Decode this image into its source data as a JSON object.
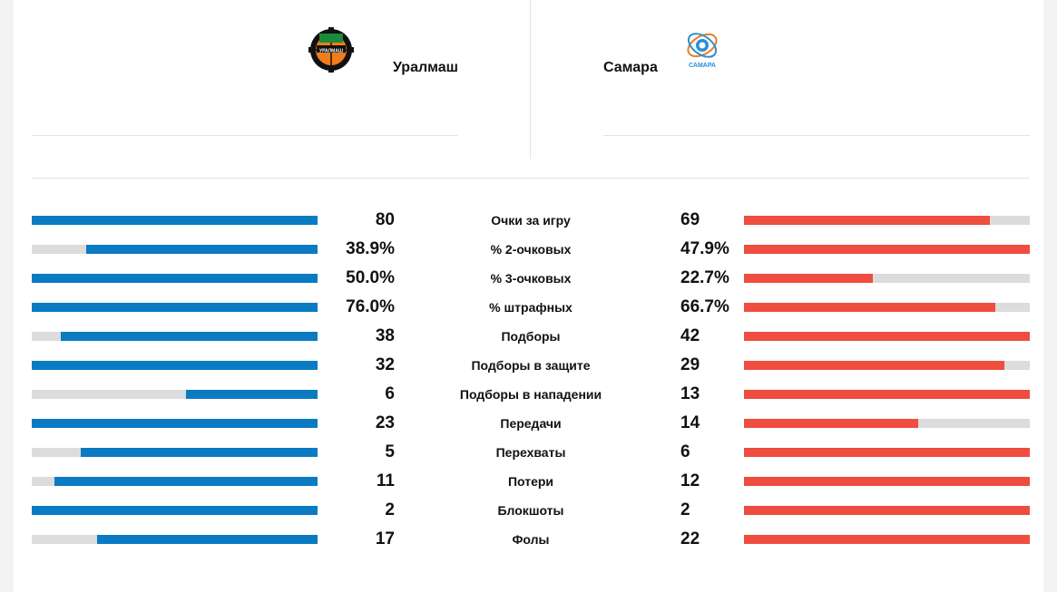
{
  "home": {
    "name": "Уралмаш",
    "logo_text": "УРАЛМАШ",
    "color": "#0a7bc2"
  },
  "away": {
    "name": "Самара",
    "logo_text": "САМАРА",
    "color": "#ee4d3f"
  },
  "stats": [
    {
      "label": "Очки за игру",
      "home": "80",
      "away": "69",
      "home_share": 1.0,
      "away_share": 0.86
    },
    {
      "label": "% 2-очковых",
      "home": "38.9%",
      "away": "47.9%",
      "home_share": 0.81,
      "away_share": 1.0
    },
    {
      "label": "% 3-очковых",
      "home": "50.0%",
      "away": "22.7%",
      "home_share": 1.0,
      "away_share": 0.45
    },
    {
      "label": "% штрафных",
      "home": "76.0%",
      "away": "66.7%",
      "home_share": 1.0,
      "away_share": 0.88
    },
    {
      "label": "Подборы",
      "home": "38",
      "away": "42",
      "home_share": 0.9,
      "away_share": 1.0
    },
    {
      "label": "Подборы в защите",
      "home": "32",
      "away": "29",
      "home_share": 1.0,
      "away_share": 0.91
    },
    {
      "label": "Подборы в нападении",
      "home": "6",
      "away": "13",
      "home_share": 0.46,
      "away_share": 1.0
    },
    {
      "label": "Передачи",
      "home": "23",
      "away": "14",
      "home_share": 1.0,
      "away_share": 0.61
    },
    {
      "label": "Перехваты",
      "home": "5",
      "away": "6",
      "home_share": 0.83,
      "away_share": 1.0
    },
    {
      "label": "Потери",
      "home": "11",
      "away": "12",
      "home_share": 0.92,
      "away_share": 1.0
    },
    {
      "label": "Блокшоты",
      "home": "2",
      "away": "2",
      "home_share": 1.0,
      "away_share": 1.0
    },
    {
      "label": "Фолы",
      "home": "17",
      "away": "22",
      "home_share": 0.77,
      "away_share": 1.0
    }
  ]
}
